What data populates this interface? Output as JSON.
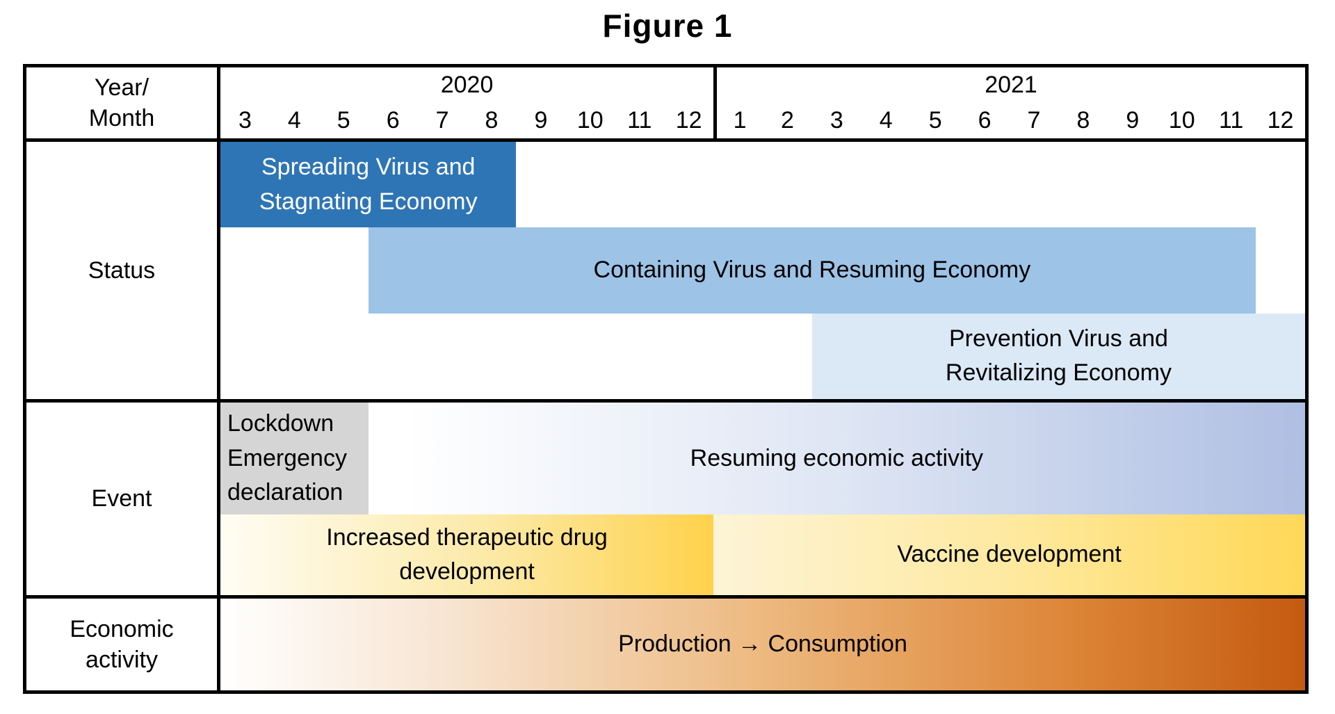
{
  "title": "Figure 1",
  "header": {
    "corner_lines": [
      "Year/",
      "Month"
    ],
    "years": [
      {
        "label": "2020",
        "months": [
          "3",
          "4",
          "5",
          "6",
          "7",
          "8",
          "9",
          "10",
          "11",
          "12"
        ]
      },
      {
        "label": "2021",
        "months": [
          "1",
          "2",
          "3",
          "4",
          "5",
          "6",
          "7",
          "8",
          "9",
          "10",
          "11",
          "12"
        ]
      }
    ]
  },
  "rows": {
    "status": {
      "label": "Status",
      "bars": [
        {
          "id": "spreading-virus",
          "lines": [
            "Spreading Virus and",
            "Stagnating Economy"
          ],
          "start": "2020-03",
          "end": "2020-08",
          "fill": "#2e75b6",
          "text_color": "#ffffff"
        },
        {
          "id": "containing-virus",
          "lines": [
            "Containing Virus and Resuming Economy"
          ],
          "start": "2020-06",
          "end": "2021-11",
          "fill": "#9dc3e6",
          "text_color": "#000000"
        },
        {
          "id": "prevention-virus",
          "lines": [
            "Prevention Virus and",
            "Revitalizing Economy"
          ],
          "start": "2021-03",
          "end": "2021-12",
          "fill": "#dbe8f6",
          "text_color": "#000000"
        }
      ]
    },
    "event": {
      "label": "Event",
      "items": [
        {
          "id": "lockdown",
          "lines": [
            "Lockdown",
            "Emergency",
            "declaration"
          ],
          "start": "2020-03",
          "end": "2020-05",
          "fill": "#d5d5d5",
          "text_color": "#000000"
        },
        {
          "id": "resuming-activity",
          "lines": [
            "Resuming economic activity"
          ],
          "start": "2020-06",
          "end": "2021-12",
          "fill_gradient": [
            "#ffffff",
            "#afbfe3"
          ],
          "text_color": "#000000"
        },
        {
          "id": "drug-development",
          "lines": [
            "Increased therapeutic drug",
            "development"
          ],
          "start": "2020-03",
          "end": "2020-12",
          "fill_gradient": [
            "#fffdf4",
            "#ffd24c"
          ],
          "text_color": "#000000"
        },
        {
          "id": "vaccine-development",
          "lines": [
            "Vaccine development"
          ],
          "start": "2021-01",
          "end": "2021-12",
          "fill_gradient": [
            "#fdf4d6",
            "#ffd857"
          ],
          "text_color": "#000000"
        }
      ]
    },
    "economic": {
      "label_lines": [
        "Economic",
        "activity"
      ],
      "items": [
        {
          "id": "production-consumption",
          "lines": [
            "Production → Consumption"
          ],
          "start": "2020-03",
          "end": "2021-12",
          "fill_gradient": [
            "#ffffff",
            "#edb97f",
            "#c45a10"
          ],
          "text_color": "#000000"
        }
      ]
    }
  }
}
